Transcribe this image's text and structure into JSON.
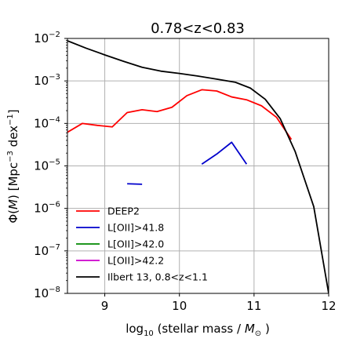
{
  "chart_data": {
    "type": "line",
    "title": "0.78<z<0.83",
    "xlabel": "log$_{10}$ (stellar mass  / $M_\\odot$ )",
    "xlabel_parts": {
      "pre": "log",
      "sub": "10",
      "mid": " (stellar mass  / ",
      "M": "M",
      "odot": "⊙",
      "post": " )"
    },
    "ylabel": "Φ(M) [Mpc$^{-3}$ dex$^{-1}$]",
    "ylabel_parts": {
      "phi": "Φ(",
      "M": "M",
      "mid": ") [Mpc",
      "sup1": "−3",
      "dex": " dex",
      "sup2": "−1",
      "end": "]"
    },
    "xlim": [
      8.5,
      12
    ],
    "ylim": [
      1e-08,
      0.01
    ],
    "yscale": "log",
    "grid": true,
    "legend_position": "lower-left",
    "x_ticks": [
      "9",
      "10",
      "11",
      "12"
    ],
    "y_ticks": [
      {
        "base": "10",
        "exp": "−8"
      },
      {
        "base": "10",
        "exp": "−7"
      },
      {
        "base": "10",
        "exp": "−6"
      },
      {
        "base": "10",
        "exp": "−5"
      },
      {
        "base": "10",
        "exp": "−4"
      },
      {
        "base": "10",
        "exp": "−3"
      },
      {
        "base": "10",
        "exp": "−2"
      }
    ],
    "series": [
      {
        "name": "DEEP2",
        "color": "#ff0000",
        "x": [
          8.5,
          8.7,
          8.9,
          9.1,
          9.3,
          9.5,
          9.7,
          9.9,
          10.1,
          10.3,
          10.5,
          10.7,
          10.9,
          11.1,
          11.3,
          11.5
        ],
        "y": [
          6.2e-05,
          0.0001,
          9e-05,
          8.3e-05,
          0.00018,
          0.00021,
          0.00019,
          0.00024,
          0.00045,
          0.00062,
          0.00058,
          0.00042,
          0.00036,
          0.00026,
          0.00014,
          4.2e-05
        ]
      },
      {
        "name": "L[OII]>41.8",
        "color": "#0000cc",
        "segments": [
          {
            "x": [
              9.3,
              9.5
            ],
            "y": [
              3.8e-06,
              3.7e-06
            ]
          },
          {
            "x": [
              10.3,
              10.5,
              10.7,
              10.9
            ],
            "y": [
              1.1e-05,
              1.9e-05,
              3.6e-05,
              1.1e-05
            ]
          }
        ]
      },
      {
        "name": "L[OII]>42.0",
        "color": "#008800",
        "x": [],
        "y": []
      },
      {
        "name": "L[OII]>42.2",
        "color": "#cc00cc",
        "x": [],
        "y": []
      },
      {
        "name": "Ilbert 13, 0.8<z<1.1",
        "color": "#000000",
        "x": [
          8.5,
          8.75,
          9.0,
          9.25,
          9.5,
          9.75,
          10.0,
          10.25,
          10.5,
          10.75,
          10.95,
          11.15,
          11.35,
          11.55,
          11.8,
          12.0
        ],
        "y": [
          0.0088,
          0.0059,
          0.0041,
          0.0029,
          0.0021,
          0.0017,
          0.0015,
          0.0013,
          0.0011,
          0.00093,
          0.00068,
          0.00037,
          0.00013,
          2.2e-05,
          1.1e-06,
          1e-08
        ]
      }
    ]
  }
}
